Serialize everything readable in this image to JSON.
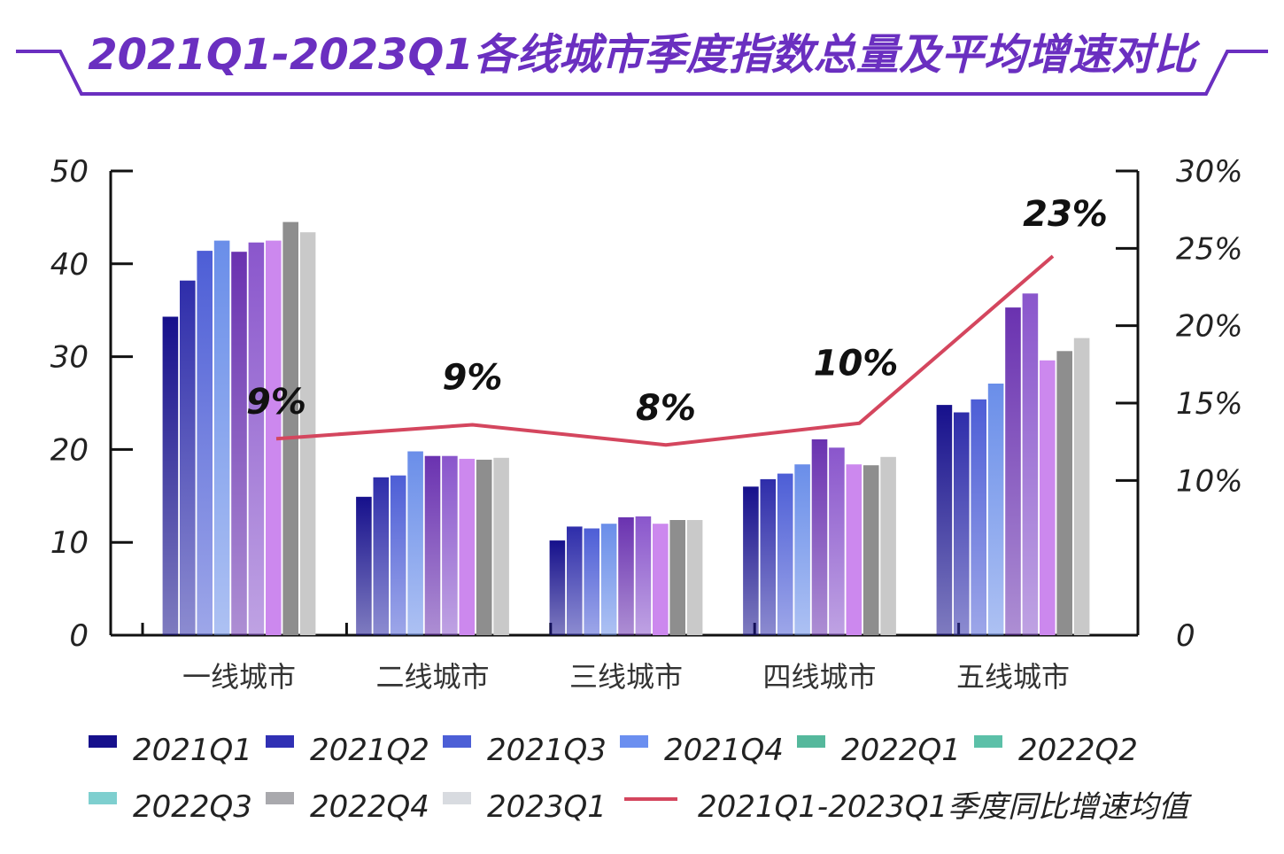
{
  "title": "2021Q1-2023Q1各线城市季度指数总量及平均增速对比",
  "colors": {
    "title": "#6a2fc0",
    "axis": "#111111",
    "growth_line": "#d4465e"
  },
  "chart_data": {
    "type": "bar",
    "title": "2021Q1-2023Q1各线城市季度指数总量及平均增速对比",
    "categories": [
      "一线城市",
      "二线城市",
      "三线城市",
      "四线城市",
      "五线城市"
    ],
    "ylim": [
      0,
      50
    ],
    "y_ticks": [
      "0",
      "10",
      "20",
      "30",
      "40",
      "50"
    ],
    "y2lim": [
      0,
      30
    ],
    "y2_ticks": [
      "0",
      "10%",
      "15%",
      "20%",
      "25%",
      "30%"
    ],
    "series": [
      {
        "name": "2021Q1",
        "bar_color": "#16108c",
        "legend_color": "#16108c",
        "values": [
          34.3,
          14.9,
          10.2,
          16.0,
          24.8
        ]
      },
      {
        "name": "2021Q2",
        "bar_color": "#2e2daa",
        "legend_color": "#3030b4",
        "values": [
          38.2,
          17.0,
          11.7,
          16.8,
          24.0
        ]
      },
      {
        "name": "2021Q3",
        "bar_color": "#4d5ed6",
        "legend_color": "#4c5fd6",
        "values": [
          41.4,
          17.2,
          11.5,
          17.4,
          25.4
        ]
      },
      {
        "name": "2021Q4",
        "bar_color": "#6a8ee9",
        "legend_color": "#6b8ff0",
        "values": [
          42.5,
          19.8,
          12.0,
          18.4,
          27.1
        ]
      },
      {
        "name": "2022Q1",
        "bar_color": "#6a32b0",
        "legend_color": "#55b89c",
        "values": [
          41.3,
          19.3,
          12.7,
          21.1,
          35.3
        ]
      },
      {
        "name": "2022Q2",
        "bar_color": "#8a56cc",
        "legend_color": "#5cc0a8",
        "values": [
          42.3,
          19.3,
          12.8,
          20.2,
          36.8
        ]
      },
      {
        "name": "2022Q3",
        "bar_color": "#cc88ee",
        "legend_color": "#7ecfcf",
        "values": [
          42.5,
          19.0,
          12.0,
          18.4,
          29.6
        ]
      },
      {
        "name": "2022Q4",
        "bar_color": "#8e8e8e",
        "legend_color": "#a9a9ad",
        "values": [
          44.5,
          18.9,
          12.4,
          18.3,
          30.6
        ]
      },
      {
        "name": "2023Q1",
        "bar_color": "#c9c9c9",
        "legend_color": "#d8dbe0",
        "values": [
          43.4,
          19.1,
          12.4,
          19.2,
          32.0
        ]
      }
    ],
    "line": {
      "name": "2021Q1-2023Q1季度同比增速均值",
      "values": [
        9,
        9,
        8,
        10,
        23
      ],
      "plotted": [
        12.7,
        13.6,
        12.3,
        13.7,
        24.5
      ],
      "labels": [
        "9%",
        "9%",
        "8%",
        "10%",
        "23%"
      ]
    },
    "legend": [
      {
        "name": "2021Q1",
        "kind": "bar",
        "series": 0
      },
      {
        "name": "2021Q2",
        "kind": "bar",
        "series": 1
      },
      {
        "name": "2021Q3",
        "kind": "bar",
        "series": 2
      },
      {
        "name": "2021Q4",
        "kind": "bar",
        "series": 3
      },
      {
        "name": "2022Q1",
        "kind": "bar",
        "series": 4
      },
      {
        "name": "2022Q2",
        "kind": "bar",
        "series": 5
      },
      {
        "name": "2022Q3",
        "kind": "bar",
        "series": 6
      },
      {
        "name": "2022Q4",
        "kind": "bar",
        "series": 7
      },
      {
        "name": "2023Q1",
        "kind": "bar",
        "series": 8
      },
      {
        "name": "2021Q1-2023Q1季度同比增速均值",
        "kind": "line"
      }
    ]
  }
}
